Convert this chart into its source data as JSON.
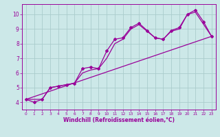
{
  "xlabel": "Windchill (Refroidissement éolien,°C)",
  "bg_color": "#cce8e8",
  "grid_color": "#aacccc",
  "line_color": "#990099",
  "xlim": [
    -0.5,
    23.5
  ],
  "ylim": [
    3.5,
    10.7
  ],
  "xticks": [
    0,
    1,
    2,
    3,
    4,
    5,
    6,
    7,
    8,
    9,
    10,
    11,
    12,
    13,
    14,
    15,
    16,
    17,
    18,
    19,
    20,
    21,
    22,
    23
  ],
  "yticks": [
    4,
    5,
    6,
    7,
    8,
    9,
    10
  ],
  "series1_x": [
    0,
    1,
    2,
    3,
    4,
    5,
    6,
    7,
    8,
    9,
    10,
    11,
    12,
    13,
    14,
    15,
    16,
    17,
    18,
    19,
    20,
    21,
    22,
    23
  ],
  "series1_y": [
    4.2,
    4.0,
    4.2,
    5.0,
    5.1,
    5.2,
    5.3,
    6.3,
    6.4,
    6.3,
    7.5,
    8.3,
    8.4,
    9.1,
    9.4,
    8.9,
    8.4,
    8.3,
    8.9,
    9.1,
    10.0,
    10.3,
    9.5,
    8.5
  ],
  "series2_x": [
    0,
    2,
    3,
    4,
    5,
    6,
    7,
    8,
    9,
    10,
    11,
    12,
    13,
    14,
    15,
    16,
    17,
    18,
    19,
    20,
    21,
    23
  ],
  "series2_y": [
    4.2,
    4.2,
    5.0,
    5.1,
    5.2,
    5.3,
    6.0,
    6.2,
    6.3,
    7.0,
    8.0,
    8.3,
    9.0,
    9.3,
    8.85,
    8.4,
    8.3,
    8.85,
    9.0,
    10.0,
    10.15,
    8.5
  ],
  "series3_x": [
    0,
    23
  ],
  "series3_y": [
    4.2,
    8.5
  ]
}
